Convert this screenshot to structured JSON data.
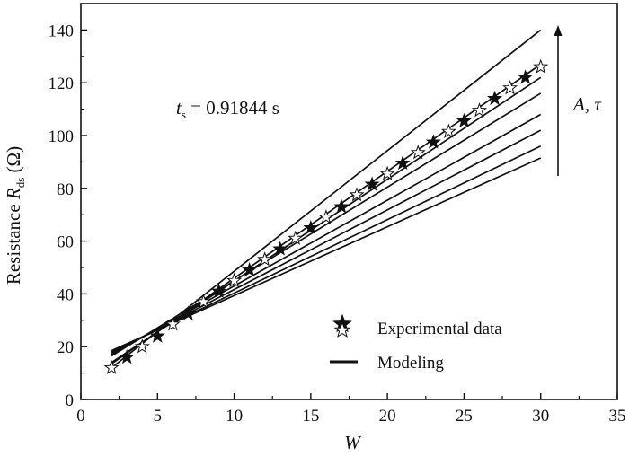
{
  "chart_data": {
    "type": "line",
    "xlabel": "W",
    "ylabel": {
      "prefix": "Resistance ",
      "symbol": "R",
      "subscript": "ds",
      "unit": " (Ω)"
    },
    "xlim": [
      0,
      35
    ],
    "ylim": [
      0,
      150
    ],
    "xticks": [
      0,
      5,
      10,
      15,
      20,
      25,
      30,
      35
    ],
    "yticks": [
      0,
      20,
      40,
      60,
      80,
      100,
      120,
      140
    ],
    "grid": false,
    "legend": {
      "placement": "lower-right",
      "entries": [
        {
          "label": "Experimental data",
          "marker": "star"
        },
        {
          "label": "Modeling",
          "marker": "line"
        }
      ]
    },
    "annotations": {
      "ts_symbol": "t",
      "ts_subscript": "s",
      "ts_value": " = 0.91844 s",
      "arrow_label": "A, τ"
    },
    "experimental": {
      "x": [
        2,
        3,
        4,
        5,
        6,
        7,
        8,
        9,
        10,
        11,
        12,
        13,
        14,
        15,
        16,
        17,
        18,
        19,
        20,
        21,
        22,
        23,
        24,
        25,
        26,
        27,
        28,
        29,
        30
      ],
      "y": [
        12.0,
        16.0,
        20.0,
        24.0,
        28.5,
        32.5,
        37.0,
        41.0,
        45.0,
        49.0,
        53.0,
        57.0,
        61.0,
        65.0,
        69.0,
        73.0,
        77.5,
        81.5,
        85.5,
        89.5,
        93.5,
        97.5,
        101.5,
        105.5,
        109.5,
        114.0,
        118.0,
        122.0,
        126.0
      ]
    },
    "modeling": [
      {
        "x": [
          2,
          30
        ],
        "y": [
          18.5,
          91.5
        ]
      },
      {
        "x": [
          2,
          30
        ],
        "y": [
          18.0,
          96.0
        ]
      },
      {
        "x": [
          2,
          30
        ],
        "y": [
          17.5,
          102.0
        ]
      },
      {
        "x": [
          2,
          30
        ],
        "y": [
          17.0,
          108.0
        ]
      },
      {
        "x": [
          2,
          30
        ],
        "y": [
          16.5,
          116.0
        ]
      },
      {
        "x": [
          2,
          30
        ],
        "y": [
          14.0,
          122.0
        ]
      },
      {
        "x": [
          2,
          30
        ],
        "y": [
          13.5,
          127.0
        ]
      },
      {
        "x": [
          2,
          30
        ],
        "y": [
          12.0,
          140.0
        ]
      }
    ]
  }
}
